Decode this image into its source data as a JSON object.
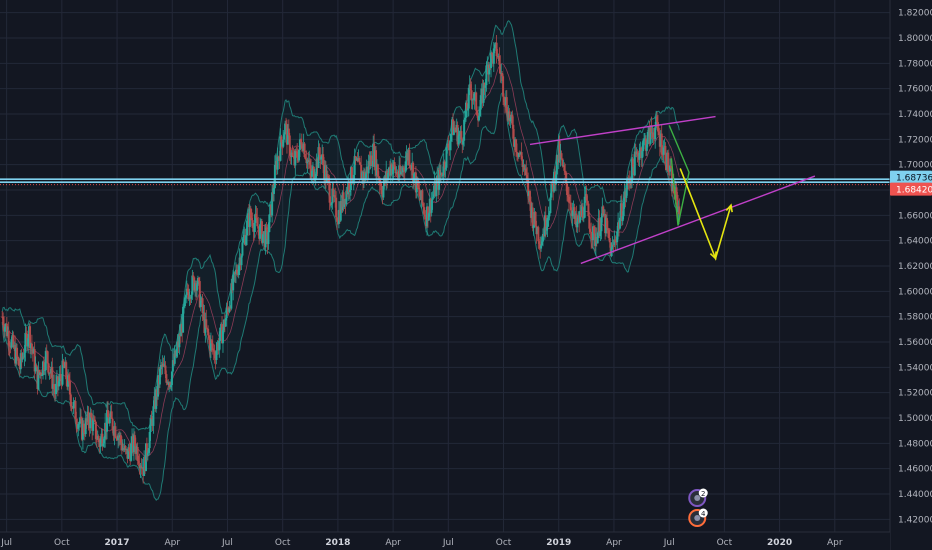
{
  "chart_data": {
    "type": "candlestick",
    "ylim": [
      1.41,
      1.83
    ],
    "grid": true,
    "price_axis_labels": [
      "1.82000",
      "1.80000",
      "1.78000",
      "1.76000",
      "1.74000",
      "1.72000",
      "1.70000",
      "1.68000",
      "1.66000",
      "1.64000",
      "1.62000",
      "1.60000",
      "1.58000",
      "1.56000",
      "1.54000",
      "1.52000",
      "1.50000",
      "1.48000",
      "1.46000",
      "1.44000",
      "1.42000"
    ],
    "price_axis_values": [
      1.82,
      1.8,
      1.78,
      1.76,
      1.74,
      1.72,
      1.7,
      1.68,
      1.66,
      1.64,
      1.62,
      1.6,
      1.58,
      1.56,
      1.54,
      1.52,
      1.5,
      1.48,
      1.46,
      1.44,
      1.42
    ],
    "time_axis_labels": [
      {
        "label": "Jul",
        "t": 2016.5,
        "year": false
      },
      {
        "label": "Oct",
        "t": 2016.75,
        "year": false
      },
      {
        "label": "2017",
        "t": 2017.0,
        "year": true
      },
      {
        "label": "Apr",
        "t": 2017.25,
        "year": false
      },
      {
        "label": "Jul",
        "t": 2017.5,
        "year": false
      },
      {
        "label": "Oct",
        "t": 2017.75,
        "year": false
      },
      {
        "label": "2018",
        "t": 2018.0,
        "year": true
      },
      {
        "label": "Apr",
        "t": 2018.25,
        "year": false
      },
      {
        "label": "Jul",
        "t": 2018.5,
        "year": false
      },
      {
        "label": "Oct",
        "t": 2018.75,
        "year": false
      },
      {
        "label": "2019",
        "t": 2019.0,
        "year": true
      },
      {
        "label": "Apr",
        "t": 2019.25,
        "year": false
      },
      {
        "label": "Jul",
        "t": 2019.5,
        "year": false
      },
      {
        "label": "Oct",
        "t": 2019.75,
        "year": false
      },
      {
        "label": "2020",
        "t": 2020.0,
        "year": true
      },
      {
        "label": "Apr",
        "t": 2020.25,
        "year": false
      }
    ],
    "xlim": [
      2016.47,
      2020.5
    ],
    "price_path": [
      [
        2016.48,
        1.58
      ],
      [
        2016.52,
        1.56
      ],
      [
        2016.56,
        1.54
      ],
      [
        2016.6,
        1.57
      ],
      [
        2016.64,
        1.53
      ],
      [
        2016.68,
        1.55
      ],
      [
        2016.72,
        1.52
      ],
      [
        2016.76,
        1.54
      ],
      [
        2016.8,
        1.51
      ],
      [
        2016.84,
        1.49
      ],
      [
        2016.88,
        1.5
      ],
      [
        2016.92,
        1.48
      ],
      [
        2016.96,
        1.5
      ],
      [
        2017.0,
        1.49
      ],
      [
        2017.04,
        1.47
      ],
      [
        2017.08,
        1.48
      ],
      [
        2017.12,
        1.46
      ],
      [
        2017.16,
        1.5
      ],
      [
        2017.2,
        1.54
      ],
      [
        2017.24,
        1.53
      ],
      [
        2017.28,
        1.56
      ],
      [
        2017.32,
        1.6
      ],
      [
        2017.36,
        1.61
      ],
      [
        2017.4,
        1.57
      ],
      [
        2017.44,
        1.55
      ],
      [
        2017.48,
        1.57
      ],
      [
        2017.52,
        1.6
      ],
      [
        2017.56,
        1.63
      ],
      [
        2017.6,
        1.66
      ],
      [
        2017.64,
        1.65
      ],
      [
        2017.68,
        1.64
      ],
      [
        2017.72,
        1.7
      ],
      [
        2017.76,
        1.73
      ],
      [
        2017.8,
        1.7
      ],
      [
        2017.84,
        1.72
      ],
      [
        2017.88,
        1.69
      ],
      [
        2017.92,
        1.71
      ],
      [
        2017.96,
        1.68
      ],
      [
        2018.0,
        1.66
      ],
      [
        2018.04,
        1.68
      ],
      [
        2018.08,
        1.7
      ],
      [
        2018.12,
        1.69
      ],
      [
        2018.16,
        1.71
      ],
      [
        2018.2,
        1.68
      ],
      [
        2018.24,
        1.7
      ],
      [
        2018.28,
        1.69
      ],
      [
        2018.32,
        1.71
      ],
      [
        2018.36,
        1.68
      ],
      [
        2018.4,
        1.66
      ],
      [
        2018.44,
        1.68
      ],
      [
        2018.48,
        1.7
      ],
      [
        2018.52,
        1.73
      ],
      [
        2018.56,
        1.72
      ],
      [
        2018.6,
        1.76
      ],
      [
        2018.64,
        1.74
      ],
      [
        2018.68,
        1.78
      ],
      [
        2018.72,
        1.79
      ],
      [
        2018.76,
        1.75
      ],
      [
        2018.8,
        1.72
      ],
      [
        2018.84,
        1.7
      ],
      [
        2018.88,
        1.66
      ],
      [
        2018.92,
        1.64
      ],
      [
        2018.96,
        1.67
      ],
      [
        2019.0,
        1.71
      ],
      [
        2019.04,
        1.68
      ],
      [
        2019.08,
        1.65
      ],
      [
        2019.12,
        1.67
      ],
      [
        2019.16,
        1.64
      ],
      [
        2019.2,
        1.66
      ],
      [
        2019.24,
        1.63
      ],
      [
        2019.28,
        1.66
      ],
      [
        2019.32,
        1.69
      ],
      [
        2019.36,
        1.71
      ],
      [
        2019.4,
        1.72
      ],
      [
        2019.44,
        1.73
      ],
      [
        2019.48,
        1.71
      ],
      [
        2019.52,
        1.68
      ],
      [
        2019.55,
        1.66
      ]
    ],
    "current_prices": [
      {
        "value": 1.68736,
        "label": "1.68736",
        "color": "#7fd1ef"
      },
      {
        "value": 1.6842,
        "label": "1.68420",
        "color": "#ef5350"
      }
    ],
    "annotations": {
      "channel_upper": [
        [
          2018.87,
          1.716
        ],
        [
          2019.71,
          1.738
        ]
      ],
      "channel_lower": [
        [
          2019.1,
          1.622
        ],
        [
          2020.16,
          1.691
        ]
      ],
      "green_wedge": [
        [
          2019.5,
          1.731
        ],
        [
          2019.59,
          1.694
        ],
        [
          2019.54,
          1.652
        ],
        [
          2019.51,
          1.705
        ]
      ],
      "yellow_projection": [
        [
          2019.55,
          1.697
        ],
        [
          2019.71,
          1.626
        ],
        [
          2019.78,
          1.668
        ]
      ],
      "line_colors": {
        "channel": "#c040c8",
        "wedge": "#3cb043",
        "projection": "#e5e510"
      }
    },
    "event_markers": [
      {
        "label": "2",
        "t": 2019.6,
        "color": "#7e57c2"
      },
      {
        "label": "4",
        "t": 2019.6,
        "color": "#ff6d3a"
      }
    ]
  }
}
